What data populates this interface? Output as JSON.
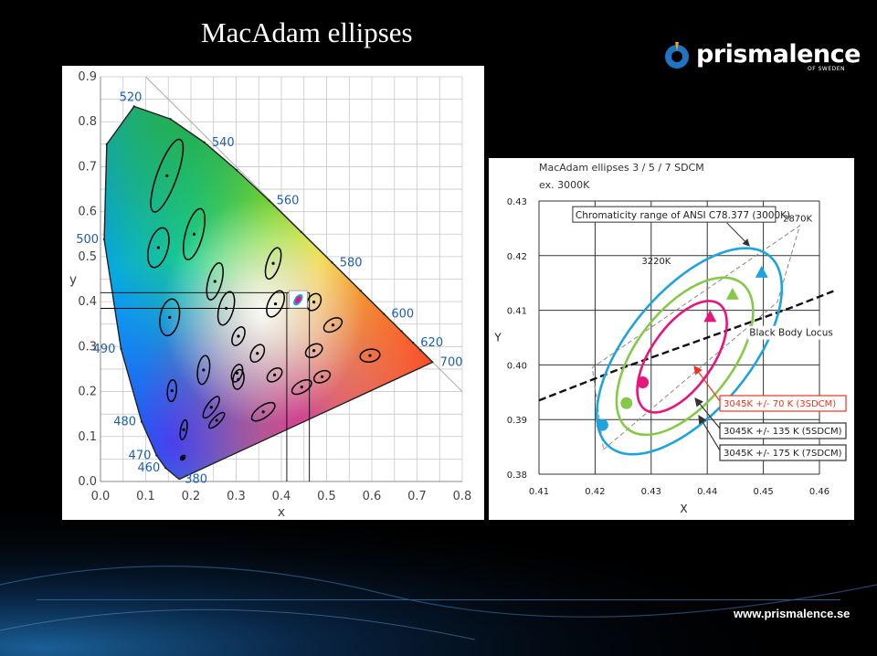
{
  "slide": {
    "title": "MacAdam ellipses",
    "logo_text": "prismalence",
    "logo_sub": "OF SWEDEN",
    "url": "www.prismalence.se",
    "accent": "#1f74c4"
  },
  "chart_data": [
    {
      "type": "scatter",
      "title": "",
      "xlabel": "x",
      "ylabel": "y",
      "xlim": [
        0.0,
        0.8
      ],
      "ylim": [
        0.0,
        0.9
      ],
      "grid": true,
      "x_ticks": [
        "0.0",
        "0.1",
        "0.2",
        "0.3",
        "0.4",
        "0.5",
        "0.6",
        "0.7",
        "0.8"
      ],
      "y_ticks": [
        "0.0",
        "0.1",
        "0.2",
        "0.3",
        "0.4",
        "0.5",
        "0.6",
        "0.7",
        "0.8",
        "0.9"
      ],
      "locus": [
        [
          0.1741,
          0.005
        ],
        [
          0.144,
          0.03
        ],
        [
          0.124,
          0.058
        ],
        [
          0.091,
          0.133
        ],
        [
          0.0454,
          0.295
        ],
        [
          0.0082,
          0.538
        ],
        [
          0.0139,
          0.75
        ],
        [
          0.0743,
          0.834
        ],
        [
          0.1547,
          0.806
        ],
        [
          0.2296,
          0.754
        ],
        [
          0.3016,
          0.692
        ],
        [
          0.3731,
          0.6245
        ],
        [
          0.4441,
          0.5547
        ],
        [
          0.5125,
          0.4866
        ],
        [
          0.5752,
          0.4242
        ],
        [
          0.627,
          0.3725
        ],
        [
          0.6658,
          0.334
        ],
        [
          0.6915,
          0.3083
        ],
        [
          0.7079,
          0.292
        ],
        [
          0.7347,
          0.2653
        ]
      ],
      "wavelength_labels": [
        {
          "label": "520",
          "x": 0.074,
          "y": 0.834
        },
        {
          "label": "540",
          "x": 0.23,
          "y": 0.754
        },
        {
          "label": "560",
          "x": 0.373,
          "y": 0.6245
        },
        {
          "label": "580",
          "x": 0.5125,
          "y": 0.4866
        },
        {
          "label": "600",
          "x": 0.627,
          "y": 0.3725
        },
        {
          "label": "620",
          "x": 0.6915,
          "y": 0.3083
        },
        {
          "label": "700",
          "x": 0.7347,
          "y": 0.2653
        },
        {
          "label": "500",
          "x": 0.0082,
          "y": 0.538
        },
        {
          "label": "490",
          "x": 0.0454,
          "y": 0.295
        },
        {
          "label": "480",
          "x": 0.091,
          "y": 0.133
        },
        {
          "label": "470",
          "x": 0.124,
          "y": 0.058
        },
        {
          "label": "460",
          "x": 0.144,
          "y": 0.03
        },
        {
          "label": "380",
          "x": 0.1741,
          "y": 0.005
        }
      ],
      "ellipses": [
        {
          "x": 0.147,
          "y": 0.68,
          "a": 0.085,
          "b": 0.022,
          "angle": 70
        },
        {
          "x": 0.128,
          "y": 0.52,
          "a": 0.045,
          "b": 0.021,
          "angle": 75
        },
        {
          "x": 0.207,
          "y": 0.55,
          "a": 0.058,
          "b": 0.019,
          "angle": 75
        },
        {
          "x": 0.253,
          "y": 0.445,
          "a": 0.042,
          "b": 0.015,
          "angle": 75
        },
        {
          "x": 0.153,
          "y": 0.365,
          "a": 0.041,
          "b": 0.021,
          "angle": 80
        },
        {
          "x": 0.278,
          "y": 0.385,
          "a": 0.038,
          "b": 0.016,
          "angle": 75
        },
        {
          "x": 0.382,
          "y": 0.485,
          "a": 0.036,
          "b": 0.014,
          "angle": 72
        },
        {
          "x": 0.387,
          "y": 0.395,
          "a": 0.031,
          "b": 0.016,
          "angle": 65
        },
        {
          "x": 0.472,
          "y": 0.399,
          "a": 0.02,
          "b": 0.014,
          "angle": 60
        },
        {
          "x": 0.305,
          "y": 0.323,
          "a": 0.022,
          "b": 0.012,
          "angle": 65
        },
        {
          "x": 0.347,
          "y": 0.285,
          "a": 0.021,
          "b": 0.013,
          "angle": 60
        },
        {
          "x": 0.514,
          "y": 0.348,
          "a": 0.022,
          "b": 0.013,
          "angle": 30
        },
        {
          "x": 0.472,
          "y": 0.291,
          "a": 0.02,
          "b": 0.013,
          "angle": 30
        },
        {
          "x": 0.596,
          "y": 0.28,
          "a": 0.022,
          "b": 0.014,
          "angle": 10
        },
        {
          "x": 0.228,
          "y": 0.248,
          "a": 0.032,
          "b": 0.013,
          "angle": 82
        },
        {
          "x": 0.305,
          "y": 0.227,
          "a": 0.022,
          "b": 0.012,
          "angle": 80
        },
        {
          "x": 0.158,
          "y": 0.202,
          "a": 0.024,
          "b": 0.01,
          "angle": 85
        },
        {
          "x": 0.302,
          "y": 0.241,
          "a": 0.02,
          "b": 0.011,
          "angle": 70
        },
        {
          "x": 0.385,
          "y": 0.237,
          "a": 0.019,
          "b": 0.012,
          "angle": 40
        },
        {
          "x": 0.49,
          "y": 0.233,
          "a": 0.019,
          "b": 0.012,
          "angle": 25
        },
        {
          "x": 0.445,
          "y": 0.21,
          "a": 0.024,
          "b": 0.012,
          "angle": 30
        },
        {
          "x": 0.245,
          "y": 0.165,
          "a": 0.028,
          "b": 0.01,
          "angle": 55
        },
        {
          "x": 0.36,
          "y": 0.155,
          "a": 0.03,
          "b": 0.013,
          "angle": 35
        },
        {
          "x": 0.184,
          "y": 0.115,
          "a": 0.022,
          "b": 0.007,
          "angle": 80
        },
        {
          "x": 0.257,
          "y": 0.136,
          "a": 0.023,
          "b": 0.008,
          "angle": 45
        },
        {
          "x": 0.182,
          "y": 0.053,
          "a": 0.006,
          "b": 0.004,
          "angle": 45
        }
      ],
      "highlight": {
        "x": 0.437,
        "y": 0.404
      },
      "guides": [
        0.412,
        0.462,
        0.42,
        0.385
      ]
    },
    {
      "type": "scatter",
      "title": "MacAdam ellipses 3   / 5 / 7 SDCM",
      "subtitle": "ex. 3000K",
      "xlabel": "X",
      "ylabel": "Y",
      "xlim": [
        0.41,
        0.46
      ],
      "ylim": [
        0.38,
        0.43
      ],
      "grid": true,
      "x_ticks": [
        "0.41",
        "0.42",
        "0.43",
        "0.44",
        "0.45",
        "0.46"
      ],
      "y_ticks": [
        "0.38",
        "0.39",
        "0.40",
        "0.41",
        "0.42",
        "0.43"
      ],
      "ansi_quadrangle": [
        [
          0.4235,
          0.3895
        ],
        [
          0.4555,
          0.4245
        ],
        [
          0.4425,
          0.4095
        ],
        [
          0.4115,
          0.3835
        ]
      ],
      "ansi_polygon": [
        [
          0.4215,
          0.3845
        ],
        [
          0.4525,
          0.4115
        ],
        [
          0.4565,
          0.4255
        ],
        [
          0.4195,
          0.3995
        ]
      ],
      "series": [
        {
          "name": "3045K +/-  70  K (3SDCM)",
          "color": "#e8157a",
          "cx": 0.4355,
          "cy": 0.4015,
          "a": 0.0115,
          "b": 0.0055,
          "angle": 55,
          "start": [
            0.4285,
            0.3968
          ],
          "end": [
            0.4405,
            0.4087
          ]
        },
        {
          "name": "3045K +/- 135 K (5SDCM)",
          "color": "#86c94a",
          "cx": 0.436,
          "cy": 0.4016,
          "a": 0.0165,
          "b": 0.0085,
          "angle": 52,
          "start": [
            0.4256,
            0.393
          ],
          "end": [
            0.4445,
            0.4128
          ]
        },
        {
          "name": "3045K +/- 175 K (7SDCM)",
          "color": "#1fa3de",
          "cx": 0.4368,
          "cy": 0.4025,
          "a": 0.0222,
          "b": 0.0108,
          "angle": 50,
          "start": [
            0.4213,
            0.389
          ],
          "end": [
            0.4497,
            0.4168
          ]
        }
      ],
      "black_body_locus": [
        [
          0.41,
          0.3935
        ],
        [
          0.425,
          0.3995
        ],
        [
          0.44,
          0.405
        ],
        [
          0.455,
          0.4105
        ],
        [
          0.4625,
          0.4135
        ]
      ],
      "annotations": [
        {
          "text": "Chromaticity range of ANSI C78.377 (3000K)",
          "x": 0.4165,
          "y": 0.4268
        },
        {
          "text": "2870K",
          "x": 0.4535,
          "y": 0.4262
        },
        {
          "text": "3220K",
          "x": 0.4283,
          "y": 0.4185
        },
        {
          "text": "Black Body Locus",
          "x": 0.4475,
          "y": 0.4053
        }
      ]
    }
  ]
}
